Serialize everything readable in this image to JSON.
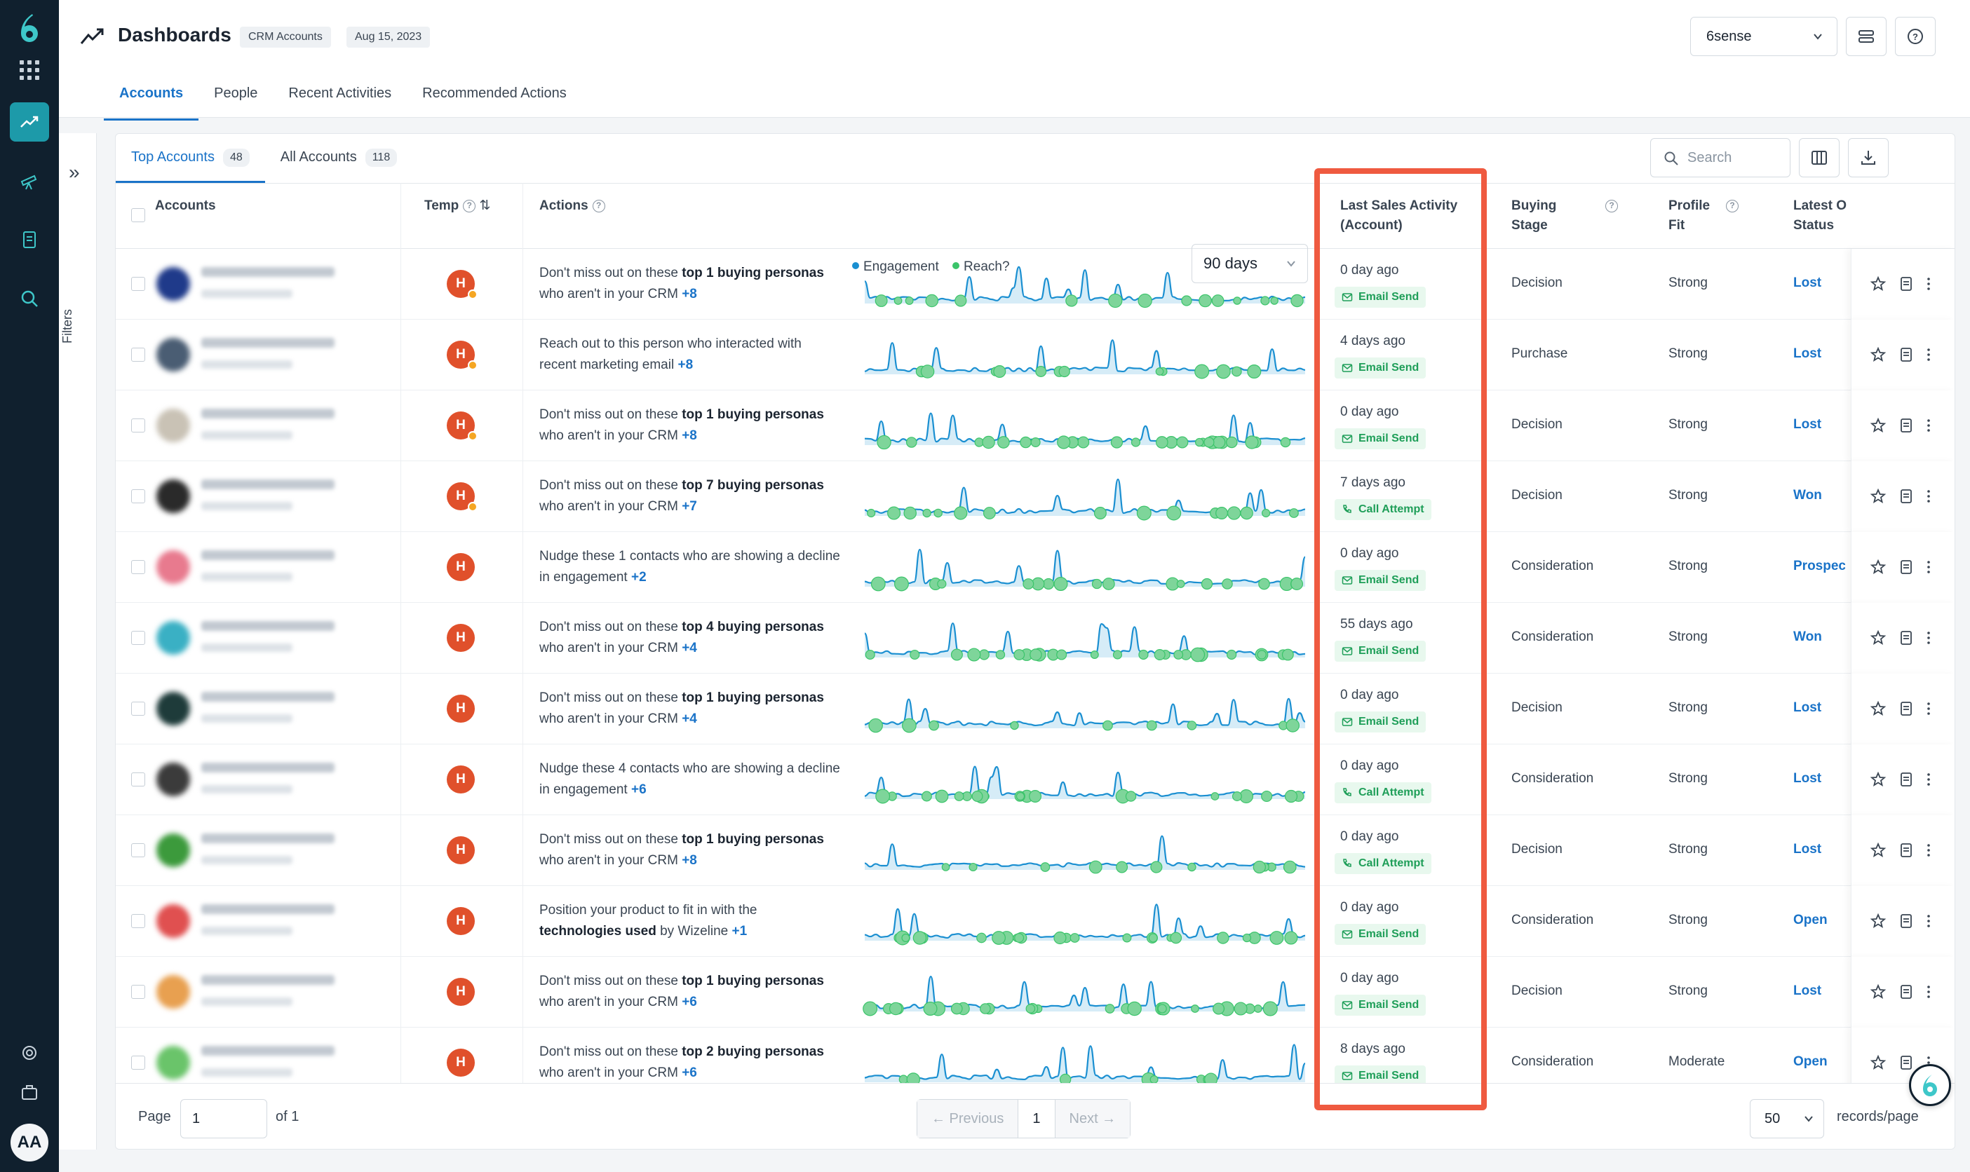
{
  "header": {
    "title": "Dashboards",
    "chips": [
      "CRM Accounts",
      "Aug 15, 2023"
    ],
    "brand_select": "6sense",
    "tabs": [
      "Accounts",
      "People",
      "Recent Activities",
      "Recommended Actions"
    ],
    "active_tab": "Accounts"
  },
  "rail": {
    "avatar_initials": "AA"
  },
  "filters": {
    "label": "Filters"
  },
  "subtabs": [
    {
      "label": "Top Accounts",
      "count": "48"
    },
    {
      "label": "All Accounts",
      "count": "118"
    }
  ],
  "search": {
    "placeholder": "Search"
  },
  "columns": {
    "accounts": "Accounts",
    "temp": "Temp",
    "actions": "Actions",
    "legend_engagement": "Engagement",
    "legend_reach": "Reach",
    "days": "90 days",
    "last_sales_activity": [
      "Last Sales Activity",
      "(Account)"
    ],
    "buying_stage": [
      "Buying",
      "Stage"
    ],
    "profile_fit": [
      "Profile",
      "Fit"
    ],
    "latest_status": [
      "Latest O",
      "Status"
    ]
  },
  "colors": {
    "engagement": "#1a8fd1",
    "reach": "#3bc46a",
    "hot": "#e0502b",
    "accent": "#1a73c8",
    "highlight": "#ef5a40"
  },
  "rows": [
    {
      "temp": "H",
      "trend_up": true,
      "action_pre": "Don't miss out on these ",
      "action_bold": "top 1 buying personas",
      "action_post": " who aren't in your CRM ",
      "action_more": "+8",
      "activity_time": "0 day ago",
      "activity_type": "Email Send",
      "stage": "Decision",
      "fit": "Strong",
      "status": "Lost",
      "logo_color": "#1f3a8a"
    },
    {
      "temp": "H",
      "trend_up": true,
      "action_pre": "Reach out to this person who interacted with recent marketing email ",
      "action_bold": "",
      "action_post": "",
      "action_more": "+8",
      "activity_time": "4 days ago",
      "activity_type": "Email Send",
      "stage": "Purchase",
      "fit": "Strong",
      "status": "Lost",
      "logo_color": "#4a5d73"
    },
    {
      "temp": "H",
      "trend_up": true,
      "action_pre": "Don't miss out on these ",
      "action_bold": "top 1 buying personas",
      "action_post": " who aren't in your CRM ",
      "action_more": "+8",
      "activity_time": "0 day ago",
      "activity_type": "Email Send",
      "stage": "Decision",
      "fit": "Strong",
      "status": "Lost",
      "logo_color": "#c9c2b5"
    },
    {
      "temp": "H",
      "trend_up": true,
      "action_pre": "Don't miss out on these ",
      "action_bold": "top 7 buying personas",
      "action_post": " who aren't in your CRM ",
      "action_more": "+7",
      "activity_time": "7 days ago",
      "activity_type": "Call Attempt",
      "stage": "Decision",
      "fit": "Strong",
      "status": "Won",
      "logo_color": "#2a2a2a"
    },
    {
      "temp": "H",
      "trend_up": false,
      "action_pre": "Nudge these 1 contacts who are showing a decline in engagement ",
      "action_bold": "",
      "action_post": "",
      "action_more": "+2",
      "activity_time": "0 day ago",
      "activity_type": "Email Send",
      "stage": "Consideration",
      "fit": "Strong",
      "status": "Prospec",
      "logo_color": "#e87a8e"
    },
    {
      "temp": "H",
      "trend_up": false,
      "action_pre": "Don't miss out on these ",
      "action_bold": "top 4 buying personas",
      "action_post": " who aren't in your CRM ",
      "action_more": "+4",
      "activity_time": "55 days ago",
      "activity_type": "Email Send",
      "stage": "Consideration",
      "fit": "Strong",
      "status": "Won",
      "logo_color": "#3ab0c4"
    },
    {
      "temp": "H",
      "trend_up": false,
      "action_pre": "Don't miss out on these ",
      "action_bold": "top 1 buying personas",
      "action_post": " who aren't in your CRM ",
      "action_more": "+4",
      "activity_time": "0 day ago",
      "activity_type": "Email Send",
      "stage": "Decision",
      "fit": "Strong",
      "status": "Lost",
      "logo_color": "#1e3b3a"
    },
    {
      "temp": "H",
      "trend_up": false,
      "action_pre": "Nudge these 4 contacts who are showing a decline in engagement ",
      "action_bold": "",
      "action_post": "",
      "action_more": "+6",
      "activity_time": "0 day ago",
      "activity_type": "Call Attempt",
      "stage": "Consideration",
      "fit": "Strong",
      "status": "Lost",
      "logo_color": "#3b3b3b"
    },
    {
      "temp": "H",
      "trend_up": false,
      "action_pre": "Don't miss out on these ",
      "action_bold": "top 1 buying personas",
      "action_post": " who aren't in your CRM ",
      "action_more": "+8",
      "activity_time": "0 day ago",
      "activity_type": "Call Attempt",
      "stage": "Decision",
      "fit": "Strong",
      "status": "Lost",
      "logo_color": "#3c9a3c"
    },
    {
      "temp": "H",
      "trend_up": false,
      "action_pre": "Position your product to fit in with the ",
      "action_bold": "technologies used",
      "action_post": " by Wizeline ",
      "action_more": "+1",
      "activity_time": "0 day ago",
      "activity_type": "Email Send",
      "stage": "Consideration",
      "fit": "Strong",
      "status": "Open",
      "logo_color": "#e05050"
    },
    {
      "temp": "H",
      "trend_up": false,
      "action_pre": "Don't miss out on these ",
      "action_bold": "top 1 buying personas",
      "action_post": " who aren't in your CRM ",
      "action_more": "+6",
      "activity_time": "0 day ago",
      "activity_type": "Email Send",
      "stage": "Decision",
      "fit": "Strong",
      "status": "Lost",
      "logo_color": "#e8a050"
    },
    {
      "temp": "H",
      "trend_up": false,
      "action_pre": "Don't miss out on these ",
      "action_bold": "top 2 buying personas",
      "action_post": " who aren't in your CRM ",
      "action_more": "+6",
      "activity_time": "8 days ago",
      "activity_type": "Email Send",
      "stage": "Consideration",
      "fit": "Moderate",
      "status": "Open",
      "logo_color": "#6ac46a"
    }
  ],
  "footer": {
    "page_label": "Page",
    "page_value": "1",
    "of_label": "of 1",
    "prev": "← Previous",
    "current": "1",
    "next": "Next →",
    "per_page": "50",
    "per_page_label": "records/page"
  }
}
